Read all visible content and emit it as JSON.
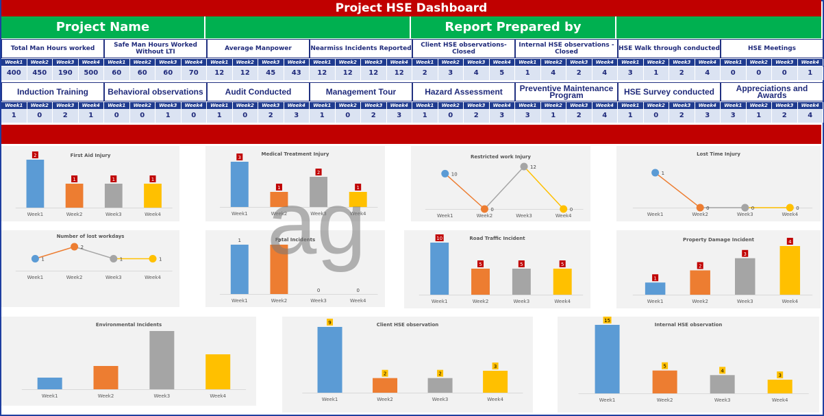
{
  "title": "Project HSE Dashboard",
  "header": {
    "project_name": "Project Name",
    "report_by": "Report Prepared by"
  },
  "week_labels": [
    "Week1",
    "Week2",
    "Week3",
    "Week4"
  ],
  "metrics_row1": [
    {
      "label": "Total Man Hours worked",
      "values": [
        "400",
        "450",
        "190",
        "500"
      ]
    },
    {
      "label": "Safe Man Hours Worked Without LTI",
      "values": [
        "60",
        "60",
        "60",
        "70"
      ]
    },
    {
      "label": "Average Manpower",
      "values": [
        "12",
        "12",
        "45",
        "43"
      ]
    },
    {
      "label": "Nearmiss Incidents Reported",
      "values": [
        "12",
        "12",
        "12",
        "12"
      ]
    },
    {
      "label": "Client HSE observations- Closed",
      "values": [
        "2",
        "3",
        "4",
        "5"
      ]
    },
    {
      "label": "Internal HSE observations - Closed",
      "values": [
        "1",
        "4",
        "2",
        "4"
      ]
    },
    {
      "label": "HSE Walk through conducted",
      "values": [
        "3",
        "1",
        "2",
        "4"
      ]
    },
    {
      "label": "HSE Meetings",
      "values": [
        "0",
        "0",
        "0",
        "1"
      ]
    }
  ],
  "metrics_row2": [
    {
      "label": "Induction Training",
      "values": [
        "1",
        "0",
        "2",
        "1"
      ]
    },
    {
      "label": "Behavioral observations",
      "values": [
        "0",
        "0",
        "1",
        "0"
      ]
    },
    {
      "label": "Audit Conducted",
      "values": [
        "1",
        "0",
        "2",
        "3"
      ]
    },
    {
      "label": "Management Tour",
      "values": [
        "1",
        "0",
        "2",
        "3"
      ]
    },
    {
      "label": "Hazard Assessment",
      "values": [
        "1",
        "0",
        "2",
        "3"
      ]
    },
    {
      "label": "Preventive Maintenance Program",
      "values": [
        "3",
        "1",
        "2",
        "4"
      ]
    },
    {
      "label": "HSE Survey conducted",
      "values": [
        "1",
        "0",
        "2",
        "3"
      ]
    },
    {
      "label": "Appreciations and Awards",
      "values": [
        "3",
        "1",
        "2",
        "4"
      ]
    }
  ],
  "watermark": "ag",
  "colors": {
    "week1": "#5b9bd5",
    "week2": "#ed7d31",
    "week3": "#a5a5a5",
    "week4": "#ffc000",
    "title": "#c00000",
    "green": "#00b050",
    "navy": "#1f3b8f"
  },
  "chart_data": [
    {
      "type": "bar",
      "title": "First Aid Injury",
      "categories": [
        "Week1",
        "Week2",
        "Week3",
        "Week4"
      ],
      "values": [
        2,
        1,
        1,
        1
      ],
      "label_style": "red"
    },
    {
      "type": "bar",
      "title": "Medical Treatment Injury",
      "categories": [
        "Week1",
        "Week2",
        "Week3",
        "Week4"
      ],
      "values": [
        3,
        1,
        2,
        1
      ],
      "label_style": "red"
    },
    {
      "type": "line",
      "title": "Restricted work Injury",
      "categories": [
        "Week1",
        "Week2",
        "Week3",
        "Week4"
      ],
      "values": [
        10,
        0,
        12,
        0
      ]
    },
    {
      "type": "line",
      "title": "Lost Time Injury",
      "categories": [
        "Week1",
        "Week2",
        "Week3",
        "Week4"
      ],
      "values": [
        1,
        0,
        0,
        0
      ]
    },
    {
      "type": "line",
      "title": "Number of lost workdays",
      "categories": [
        "Week1",
        "Week2",
        "Week3",
        "Week4"
      ],
      "values": [
        1,
        2,
        1,
        1
      ]
    },
    {
      "type": "bar",
      "title": "Fatal Incidents",
      "categories": [
        "Week1",
        "Week2",
        "Week3",
        "Week4"
      ],
      "values": [
        1,
        1,
        0,
        0
      ],
      "label_style": "plain"
    },
    {
      "type": "bar",
      "title": "Road Traffic Incident",
      "categories": [
        "Week1",
        "Week2",
        "Week3",
        "Week4"
      ],
      "values": [
        10,
        5,
        5,
        5
      ],
      "label_style": "red"
    },
    {
      "type": "bar",
      "title": "Property Damage Incident",
      "categories": [
        "Week1",
        "Week2",
        "Week3",
        "Week4"
      ],
      "values": [
        1,
        2,
        3,
        4
      ],
      "label_style": "red"
    },
    {
      "type": "bar",
      "title": "Environmental Incidents",
      "categories": [
        "Week1",
        "Week2",
        "Week3",
        "Week4"
      ],
      "values": [
        1,
        2,
        5,
        3
      ],
      "label_style": "none"
    },
    {
      "type": "bar",
      "title": "Client HSE observation",
      "categories": [
        "Week1",
        "Week2",
        "Week3",
        "Week4"
      ],
      "values": [
        9,
        2,
        2,
        3
      ],
      "label_style": "yellow"
    },
    {
      "type": "bar",
      "title": "Internal HSE observation",
      "categories": [
        "Week1",
        "Week2",
        "Week3",
        "Week4"
      ],
      "values": [
        15,
        5,
        4,
        3
      ],
      "label_style": "yellow"
    }
  ]
}
